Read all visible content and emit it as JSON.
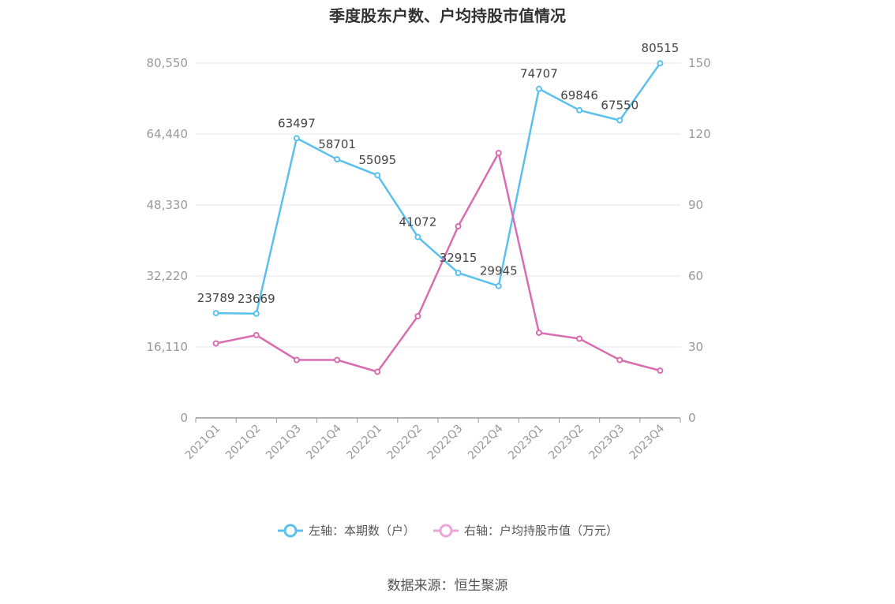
{
  "title": "季度股东户数、户均持股市值情况",
  "source": "数据来源：恒生聚源",
  "legend": [
    {
      "label": "左轴：本期数（户）",
      "color": "#5bc0eb"
    },
    {
      "label": "右轴：户均持股市值（万元）",
      "color": "#e9a6d6"
    }
  ],
  "chart_data": {
    "type": "line",
    "categories": [
      "2021Q1",
      "2021Q2",
      "2021Q3",
      "2021Q4",
      "2022Q1",
      "2022Q2",
      "2022Q3",
      "2022Q4",
      "2023Q1",
      "2023Q2",
      "2023Q3",
      "2023Q4"
    ],
    "left_axis": {
      "ticks": [
        "0",
        "16,110",
        "32,220",
        "48,330",
        "64,440",
        "80,550"
      ],
      "ylim": [
        0,
        80550
      ]
    },
    "right_axis": {
      "ticks": [
        "0",
        "30",
        "60",
        "90",
        "120",
        "150"
      ],
      "ylim": [
        0,
        150
      ]
    },
    "grid": true,
    "legend_position": "bottom",
    "series": [
      {
        "name": "左轴：本期数（户）",
        "axis": "left",
        "color": "#5bc0eb",
        "values": [
          23789,
          23669,
          63497,
          58701,
          55095,
          41072,
          32915,
          29945,
          74707,
          69846,
          67550,
          80515
        ],
        "labels": [
          "23789",
          "23669",
          "63497",
          "58701",
          "55095",
          "41072",
          "32915",
          "29945",
          "74707",
          "69846",
          "67550",
          "80515"
        ]
      },
      {
        "name": "右轴：户均持股市值（万元）",
        "axis": "right",
        "color": "#d86db1",
        "values": [
          31.5,
          35.0,
          24.5,
          24.5,
          19.5,
          43.0,
          81.0,
          112.0,
          36.0,
          33.5,
          24.5,
          20.0
        ]
      }
    ]
  }
}
